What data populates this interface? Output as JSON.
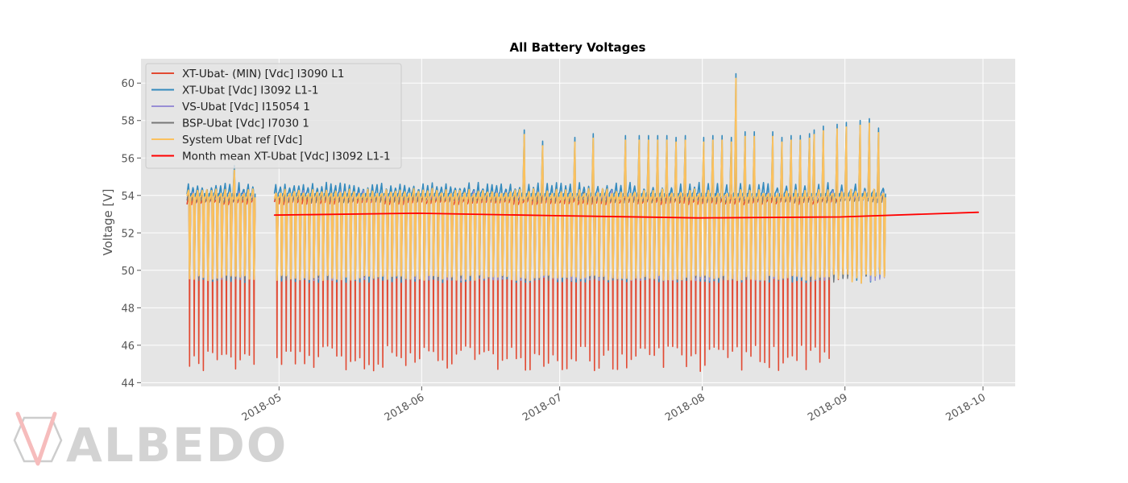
{
  "chart_data": {
    "type": "line",
    "title": "All Battery Voltages",
    "xlabel": "",
    "ylabel": "Voltage [V]",
    "xlim": [
      "2018-04-01",
      "2018-10-08"
    ],
    "ylim": [
      43.8,
      61.3
    ],
    "x_ticks": [
      "2018-05",
      "2018-06",
      "2018-07",
      "2018-08",
      "2018-09",
      "2018-10"
    ],
    "y_ticks": [
      44,
      46,
      48,
      50,
      52,
      54,
      56,
      58,
      60
    ],
    "grid": true,
    "legend_position": "top-left",
    "plot_background": "#e5e5e5",
    "series": [
      {
        "name": "XT-Ubat- (MIN) [Vdc] I3090 L1",
        "color": "#e24a33",
        "line_width": 1.6,
        "day_range": [
          "2018-04-11",
          "2018-08-30"
        ],
        "gaps": [
          [
            "2018-04-26",
            "2018-04-30"
          ]
        ],
        "daily_cycle": {
          "high": 53.9,
          "low": 49.6
        },
        "deep_discharge": {
          "min_range": [
            44.6,
            46.0
          ],
          "end_date": "2018-08-28"
        },
        "observed_min": 44.7
      },
      {
        "name": "XT-Ubat [Vdc] I3092 L1-1",
        "color": "#348abd",
        "line_width": 1.6,
        "day_range": [
          "2018-04-11",
          "2018-09-09"
        ],
        "gaps": [
          [
            "2018-04-26",
            "2018-04-30"
          ]
        ],
        "daily_cycle": {
          "high": 54.4,
          "low": 49.5
        },
        "observed_max": 60.5,
        "peaks": [
          {
            "date": "2018-04-21",
            "value": 55.6
          },
          {
            "date": "2018-06-23",
            "value": 57.5
          },
          {
            "date": "2018-06-27",
            "value": 56.9
          },
          {
            "date": "2018-07-04",
            "value": 57.1
          },
          {
            "date": "2018-07-08",
            "value": 57.3
          },
          {
            "date": "2018-07-15",
            "value": 57.2
          },
          {
            "date": "2018-07-18",
            "value": 57.2
          },
          {
            "date": "2018-07-20",
            "value": 57.2
          },
          {
            "date": "2018-07-22",
            "value": 57.2
          },
          {
            "date": "2018-07-24",
            "value": 57.2
          },
          {
            "date": "2018-07-26",
            "value": 57.1
          },
          {
            "date": "2018-07-28",
            "value": 57.2
          },
          {
            "date": "2018-08-01",
            "value": 57.1
          },
          {
            "date": "2018-08-03",
            "value": 57.2
          },
          {
            "date": "2018-08-05",
            "value": 57.2
          },
          {
            "date": "2018-08-07",
            "value": 57.1
          },
          {
            "date": "2018-08-08",
            "value": 60.5
          },
          {
            "date": "2018-08-10",
            "value": 57.4
          },
          {
            "date": "2018-08-12",
            "value": 57.4
          },
          {
            "date": "2018-08-16",
            "value": 57.4
          },
          {
            "date": "2018-08-18",
            "value": 57.1
          },
          {
            "date": "2018-08-20",
            "value": 57.2
          },
          {
            "date": "2018-08-22",
            "value": 57.2
          },
          {
            "date": "2018-08-24",
            "value": 57.3
          },
          {
            "date": "2018-08-25",
            "value": 57.5
          },
          {
            "date": "2018-08-27",
            "value": 57.7
          },
          {
            "date": "2018-08-30",
            "value": 57.8
          },
          {
            "date": "2018-09-01",
            "value": 57.9
          },
          {
            "date": "2018-09-04",
            "value": 58.0
          },
          {
            "date": "2018-09-06",
            "value": 58.1
          },
          {
            "date": "2018-09-08",
            "value": 57.6
          }
        ]
      },
      {
        "name": "VS-Ubat [Vdc] I15054 1",
        "color": "#988ed5",
        "line_width": 1.4,
        "day_range": [
          "2018-04-11",
          "2018-09-09"
        ],
        "gaps": [
          [
            "2018-04-26",
            "2018-04-30"
          ]
        ],
        "daily_cycle": {
          "high": 54.1,
          "low": 49.6
        }
      },
      {
        "name": "BSP-Ubat [Vdc] I7030 1",
        "color": "#777777",
        "line_width": 1.4,
        "day_range": [
          "2018-04-11",
          "2018-09-09"
        ],
        "gaps": [
          [
            "2018-04-26",
            "2018-04-30"
          ]
        ],
        "daily_cycle": {
          "high": 54.0,
          "low": 49.6
        }
      },
      {
        "name": "System Ubat ref [Vdc]",
        "color": "#fbc15e",
        "line_width": 1.8,
        "day_range": [
          "2018-04-11",
          "2018-09-09"
        ],
        "gaps": [
          [
            "2018-04-26",
            "2018-04-30"
          ]
        ],
        "daily_cycle": {
          "high": 54.2,
          "low": 49.6
        }
      },
      {
        "name": "Month mean XT-Ubat [Vdc] I3092 L1-1",
        "color": "#ff0000",
        "line_width": 1.8,
        "points": [
          {
            "x": "2018-04-30",
            "y": 52.95
          },
          {
            "x": "2018-05-31",
            "y": 53.05
          },
          {
            "x": "2018-06-30",
            "y": 52.92
          },
          {
            "x": "2018-07-31",
            "y": 52.8
          },
          {
            "x": "2018-08-31",
            "y": 52.85
          },
          {
            "x": "2018-09-30",
            "y": 53.1
          }
        ]
      }
    ]
  },
  "watermark": {
    "text": "ALBEDO"
  }
}
